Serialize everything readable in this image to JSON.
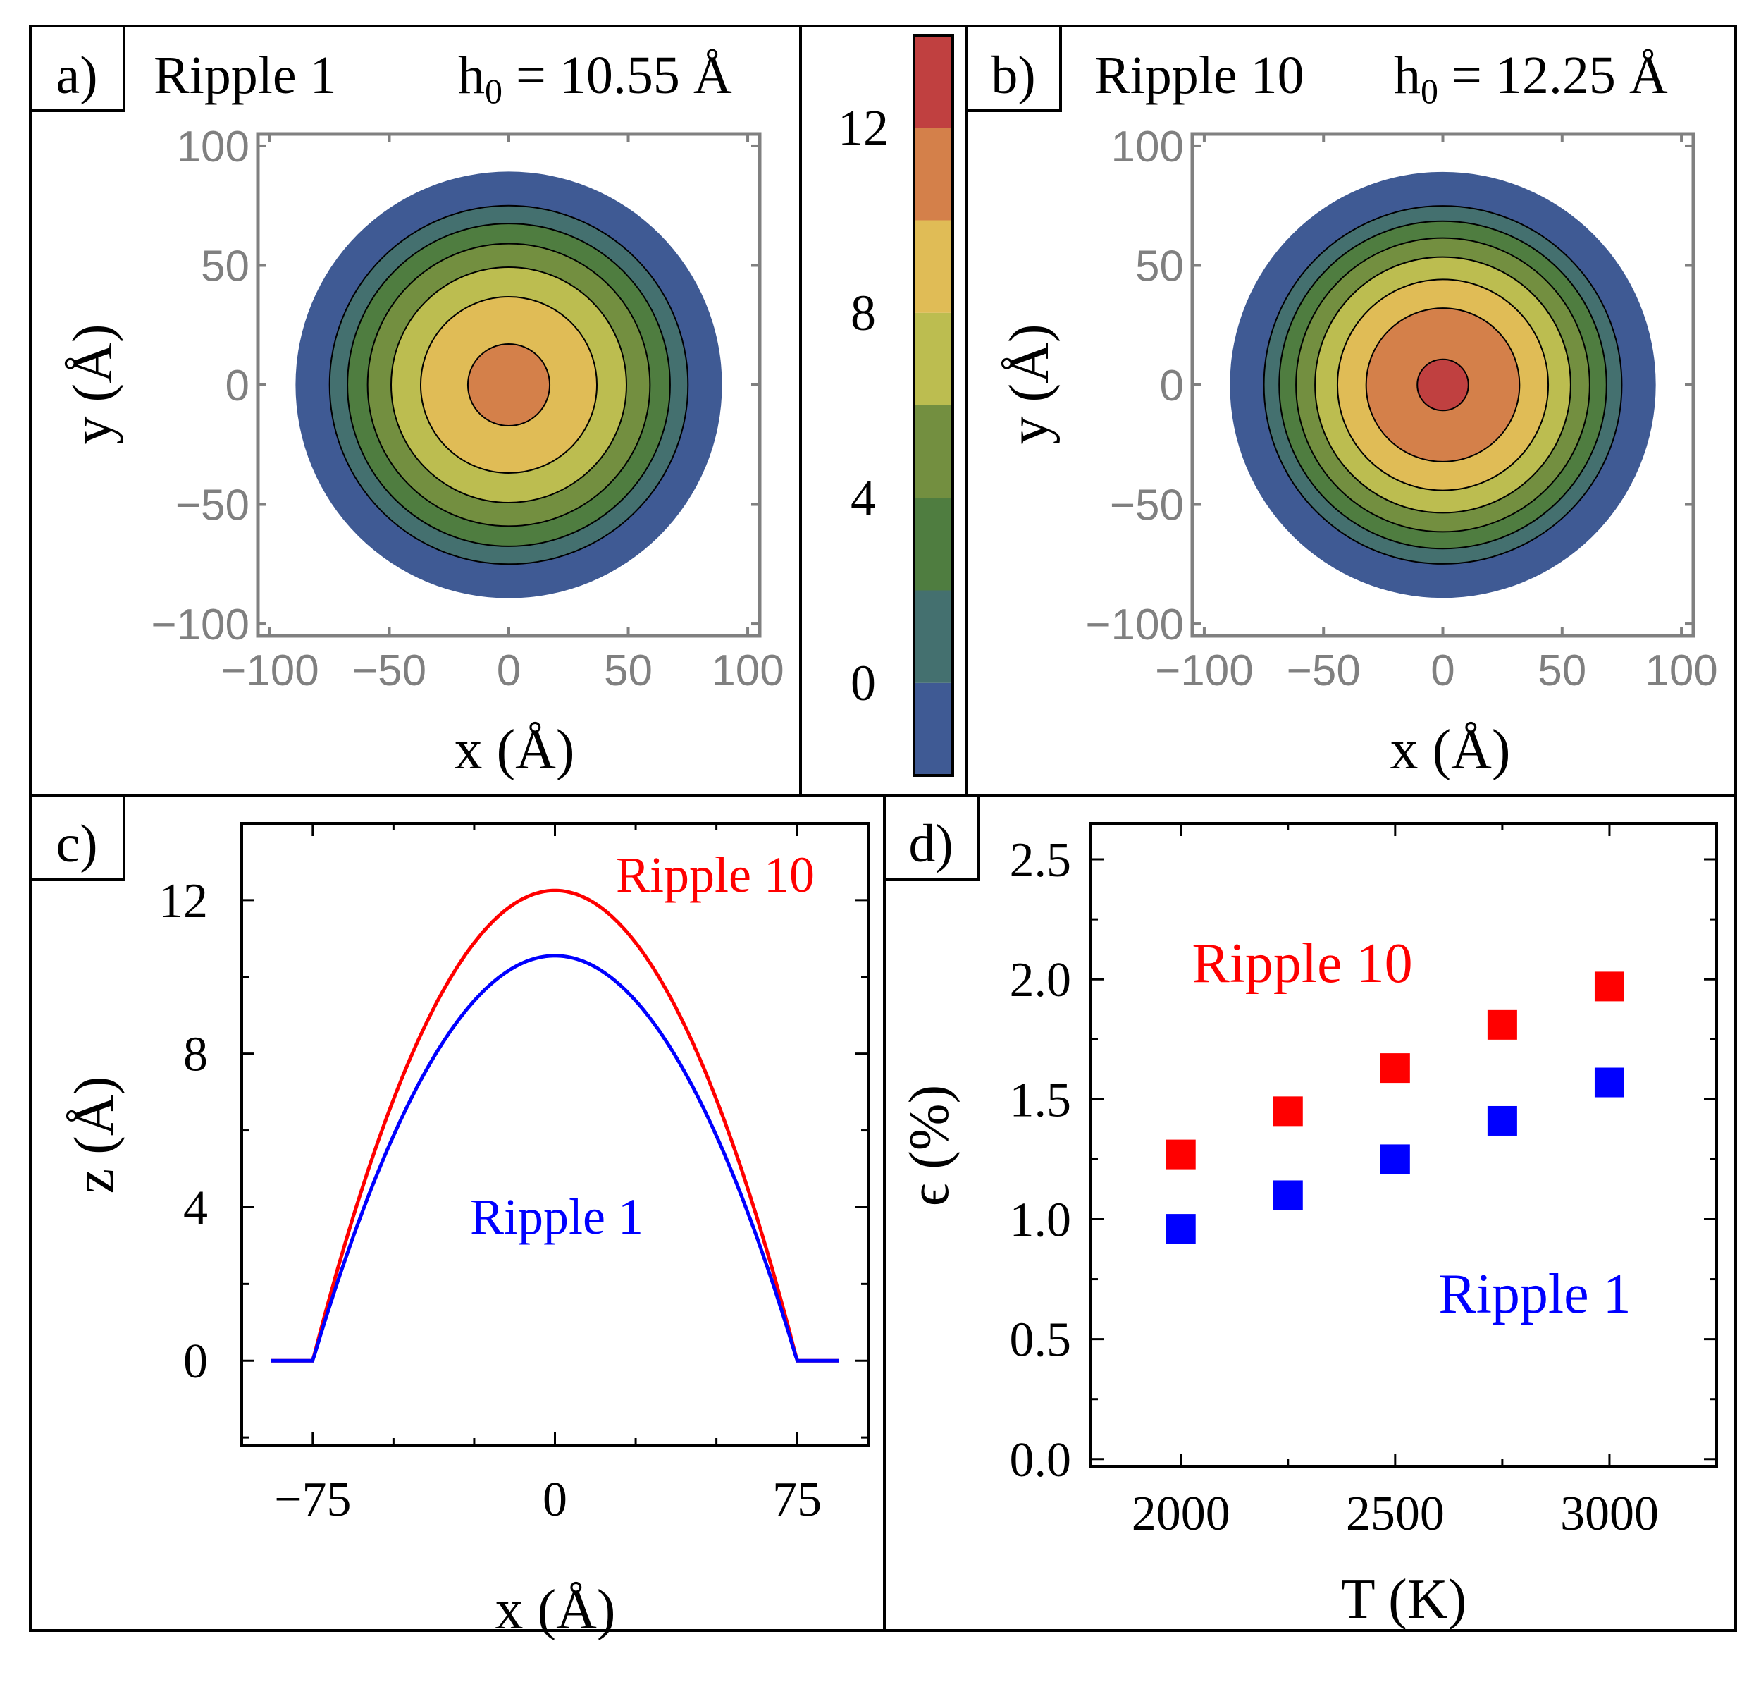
{
  "chart_data": [
    {
      "panel": "a)",
      "type": "contour",
      "title": "Ripple 1",
      "annotation": "h₀ = 10.55 Å",
      "h0": 10.55,
      "radius": 75,
      "xlabel": "x (Å)",
      "ylabel": "y (Å)",
      "xlim": [
        -105,
        105
      ],
      "ylim": [
        -105,
        105
      ],
      "xticks": [
        -100,
        -50,
        0,
        50,
        100
      ],
      "yticks": [
        -100,
        -50,
        0,
        50,
        100
      ],
      "xtick_labels": [
        "−100",
        "−50",
        "0",
        "50",
        "100"
      ],
      "ytick_labels": [
        "−100",
        "−50",
        "0",
        "50",
        "100"
      ]
    },
    {
      "panel": "b)",
      "type": "contour",
      "title": "Ripple 10",
      "annotation": "h₀ = 12.25 Å",
      "h0": 12.25,
      "radius": 75,
      "xlabel": "x (Å)",
      "ylabel": "y (Å)",
      "xlim": [
        -105,
        105
      ],
      "ylim": [
        -105,
        105
      ],
      "xticks": [
        -100,
        -50,
        0,
        50,
        100
      ],
      "yticks": [
        -100,
        -50,
        0,
        50,
        100
      ],
      "xtick_labels": [
        "−100",
        "−50",
        "0",
        "50",
        "100"
      ],
      "ytick_labels": [
        "−100",
        "−50",
        "0",
        "50",
        "100"
      ]
    },
    {
      "panel": "colorbar",
      "type": "colorbar",
      "range": [
        -2,
        14
      ],
      "levels": [
        -2,
        0,
        2,
        4,
        6,
        8,
        10,
        12,
        14
      ],
      "colors": [
        "#3f5a94",
        "#44706f",
        "#4f7d40",
        "#738f40",
        "#bcbd50",
        "#e0bc56",
        "#d4804a",
        "#c04040"
      ],
      "ticks": [
        0,
        4,
        8,
        12
      ],
      "tick_labels": [
        "0",
        "4",
        "8",
        "12"
      ]
    },
    {
      "panel": "c)",
      "type": "line",
      "xlabel": "x (Å)",
      "ylabel": "z (Å)",
      "xlim": [
        -97,
        97
      ],
      "ylim": [
        -2.2,
        14
      ],
      "xticks": [
        -75,
        0,
        75
      ],
      "yticks": [
        0,
        4,
        8,
        12
      ],
      "xtick_labels": [
        "−75",
        "0",
        "75"
      ],
      "ytick_labels": [
        "0",
        "4",
        "8",
        "12"
      ],
      "profile_x_range": [
        -88,
        88
      ],
      "series": [
        {
          "name": "Ripple 10",
          "h0": 12.25,
          "half_width": 75,
          "color": "#ff0000"
        },
        {
          "name": "Ripple 1",
          "h0": 10.55,
          "half_width": 75,
          "color": "#0000ff"
        }
      ]
    },
    {
      "panel": "d)",
      "type": "scatter",
      "xlabel": "T (K)",
      "ylabel": "ϵ (%)",
      "xlim": [
        1790,
        3250
      ],
      "ylim": [
        -0.03,
        2.65
      ],
      "xticks": [
        2000,
        2500,
        3000
      ],
      "yticks": [
        0.0,
        0.5,
        1.0,
        1.5,
        2.0,
        2.5
      ],
      "xtick_labels": [
        "2000",
        "2500",
        "3000"
      ],
      "ytick_labels": [
        "0.0",
        "0.5",
        "1.0",
        "1.5",
        "2.0",
        "2.5"
      ],
      "series": [
        {
          "name": "Ripple 10",
          "color": "#ff0000",
          "x": [
            2000,
            2250,
            2500,
            2750,
            3000
          ],
          "y": [
            1.27,
            1.45,
            1.63,
            1.81,
            1.97
          ]
        },
        {
          "name": "Ripple 1",
          "color": "#0000ff",
          "x": [
            2000,
            2250,
            2500,
            2750,
            3000
          ],
          "y": [
            0.96,
            1.1,
            1.25,
            1.41,
            1.57
          ]
        }
      ]
    }
  ],
  "labels": {
    "a": {
      "panel": "a)",
      "title": "Ripple 1",
      "h_letter": "h",
      "h_sub": "0",
      "h_rest": " = 10.55 Å",
      "xlabel": "x (Å)",
      "ylabel": "y (Å)"
    },
    "b": {
      "panel": "b)",
      "title": "Ripple 10",
      "h_letter": "h",
      "h_sub": "0",
      "h_rest": " = 12.25 Å",
      "xlabel": "x (Å)",
      "ylabel": "y (Å)"
    },
    "c": {
      "panel": "c)",
      "legend_top": "Ripple 10",
      "legend_bottom": "Ripple 1",
      "xlabel": "x (Å)",
      "ylabel": "z (Å)"
    },
    "d": {
      "panel": "d)",
      "legend_top": "Ripple 10",
      "legend_bottom": "Ripple 1",
      "xlabel": "T (K)",
      "ylabel": "ϵ (%)"
    }
  }
}
